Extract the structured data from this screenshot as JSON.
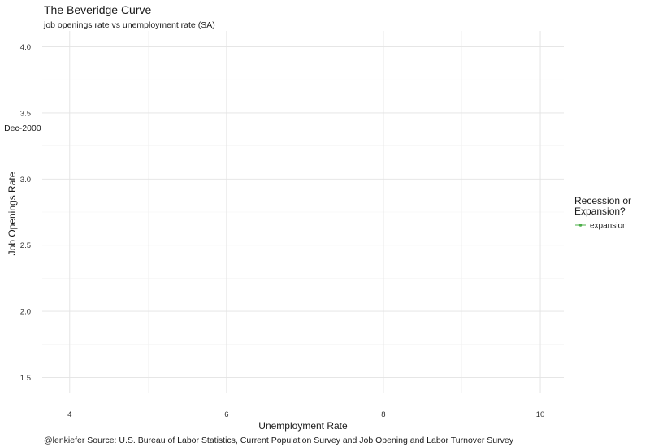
{
  "chart_data": {
    "type": "line",
    "title": "The Beveridge Curve",
    "subtitle": "job openings rate vs unemployment rate (SA)",
    "xlabel": "Unemployment Rate",
    "ylabel": "Job Openings Rate",
    "caption": "@lenkiefer Source: U.S. Bureau of Labor Statistics, Current Population Survey and Job Opening and Labor Turnover Survey",
    "xlim": [
      3.65,
      10.3
    ],
    "ylim": [
      1.38,
      4.12
    ],
    "x_ticks": [
      4,
      6,
      8,
      10
    ],
    "x_tick_labels": [
      "4",
      "6",
      "8",
      "10"
    ],
    "x_minor_ticks": [
      5,
      7,
      9
    ],
    "y_ticks": [
      1.5,
      2.0,
      2.5,
      3.0,
      3.5,
      4.0
    ],
    "y_tick_labels": [
      "1.5",
      "2.0",
      "2.5",
      "3.0",
      "3.5",
      "4.0"
    ],
    "y_minor_ticks": [
      1.75,
      2.25,
      2.75,
      3.25,
      3.75
    ],
    "grid": true,
    "legend": {
      "title": "Recession or Expansion?",
      "title_lines": [
        "Recession or",
        "Expansion?"
      ],
      "position": "right",
      "entries": [
        {
          "name": "expansion",
          "color": "#4daf4a"
        }
      ]
    },
    "annotations": [
      {
        "text": "Dec-2000",
        "x": 3.4,
        "y": 3.39
      }
    ],
    "series": [
      {
        "name": "expansion",
        "color": "#4daf4a",
        "x": [],
        "y": []
      }
    ]
  }
}
